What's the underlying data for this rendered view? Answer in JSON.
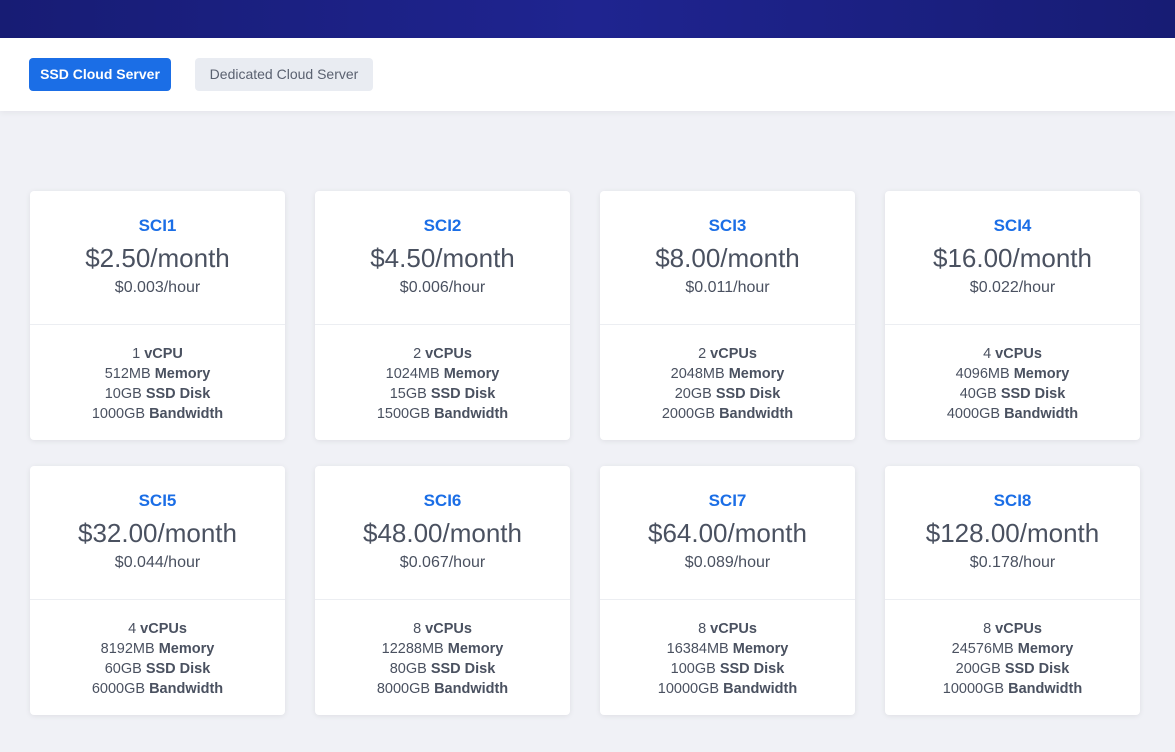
{
  "tabs": {
    "ssd_label": "SSD Cloud Server",
    "dedicated_label": "Dedicated Cloud Server"
  },
  "colors": {
    "header_bg": "#171c74",
    "accent": "#1b6ee6",
    "page_bg": "#f0f1f6"
  },
  "plans": [
    {
      "name": "SCI1",
      "price_month": "$2.50/month",
      "price_hour": "$0.003/hour",
      "cpu_value": "1",
      "cpu_unit": "vCPU",
      "memory_value": "512MB",
      "memory_label": "Memory",
      "disk_value": "10GB",
      "disk_label": "SSD Disk",
      "bandwidth_value": "1000GB",
      "bandwidth_label": "Bandwidth"
    },
    {
      "name": "SCI2",
      "price_month": "$4.50/month",
      "price_hour": "$0.006/hour",
      "cpu_value": "2",
      "cpu_unit": "vCPUs",
      "memory_value": "1024MB",
      "memory_label": "Memory",
      "disk_value": "15GB",
      "disk_label": "SSD Disk",
      "bandwidth_value": "1500GB",
      "bandwidth_label": "Bandwidth"
    },
    {
      "name": "SCI3",
      "price_month": "$8.00/month",
      "price_hour": "$0.011/hour",
      "cpu_value": "2",
      "cpu_unit": "vCPUs",
      "memory_value": "2048MB",
      "memory_label": "Memory",
      "disk_value": "20GB",
      "disk_label": "SSD Disk",
      "bandwidth_value": "2000GB",
      "bandwidth_label": "Bandwidth"
    },
    {
      "name": "SCI4",
      "price_month": "$16.00/month",
      "price_hour": "$0.022/hour",
      "cpu_value": "4",
      "cpu_unit": "vCPUs",
      "memory_value": "4096MB",
      "memory_label": "Memory",
      "disk_value": "40GB",
      "disk_label": "SSD Disk",
      "bandwidth_value": "4000GB",
      "bandwidth_label": "Bandwidth"
    },
    {
      "name": "SCI5",
      "price_month": "$32.00/month",
      "price_hour": "$0.044/hour",
      "cpu_value": "4",
      "cpu_unit": "vCPUs",
      "memory_value": "8192MB",
      "memory_label": "Memory",
      "disk_value": "60GB",
      "disk_label": "SSD Disk",
      "bandwidth_value": "6000GB",
      "bandwidth_label": "Bandwidth"
    },
    {
      "name": "SCI6",
      "price_month": "$48.00/month",
      "price_hour": "$0.067/hour",
      "cpu_value": "8",
      "cpu_unit": "vCPUs",
      "memory_value": "12288MB",
      "memory_label": "Memory",
      "disk_value": "80GB",
      "disk_label": "SSD Disk",
      "bandwidth_value": "8000GB",
      "bandwidth_label": "Bandwidth"
    },
    {
      "name": "SCI7",
      "price_month": "$64.00/month",
      "price_hour": "$0.089/hour",
      "cpu_value": "8",
      "cpu_unit": "vCPUs",
      "memory_value": "16384MB",
      "memory_label": "Memory",
      "disk_value": "100GB",
      "disk_label": "SSD Disk",
      "bandwidth_value": "10000GB",
      "bandwidth_label": "Bandwidth"
    },
    {
      "name": "SCI8",
      "price_month": "$128.00/month",
      "price_hour": "$0.178/hour",
      "cpu_value": "8",
      "cpu_unit": "vCPUs",
      "memory_value": "24576MB",
      "memory_label": "Memory",
      "disk_value": "200GB",
      "disk_label": "SSD Disk",
      "bandwidth_value": "10000GB",
      "bandwidth_label": "Bandwidth"
    }
  ]
}
